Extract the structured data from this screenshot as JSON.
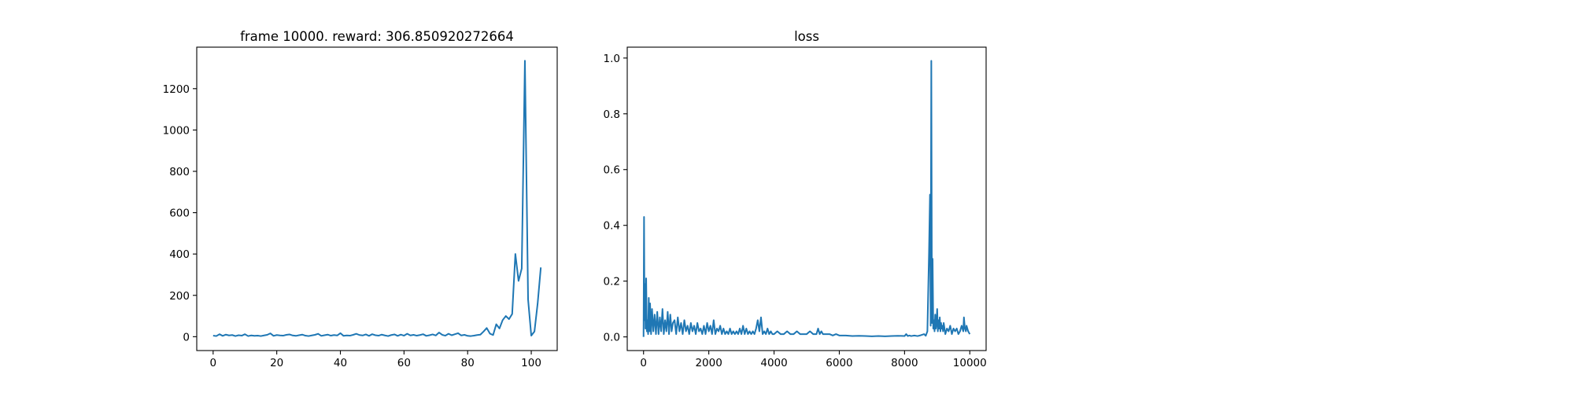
{
  "chart_data": [
    {
      "type": "line",
      "title": "frame 10000. reward: 306.850920272664",
      "xlabel": "",
      "ylabel": "",
      "xlim": [
        -5.15,
        108.15
      ],
      "ylim": [
        -67.1,
        1400.8
      ],
      "xticks": [
        0,
        20,
        40,
        60,
        80,
        100
      ],
      "yticks": [
        0,
        200,
        400,
        600,
        800,
        1000,
        1200
      ],
      "grid": false,
      "color": "#1f77b4",
      "series": [
        {
          "x": [
            0,
            1,
            2,
            3,
            4,
            5,
            6,
            7,
            8,
            9,
            10,
            11,
            12,
            13,
            14,
            15,
            16,
            17,
            18,
            19,
            20,
            21,
            22,
            23,
            24,
            25,
            26,
            27,
            28,
            29,
            30,
            31,
            32,
            33,
            34,
            35,
            36,
            37,
            38,
            39,
            40,
            41,
            42,
            43,
            44,
            45,
            46,
            47,
            48,
            49,
            50,
            51,
            52,
            53,
            54,
            55,
            56,
            57,
            58,
            59,
            60,
            61,
            62,
            63,
            64,
            65,
            66,
            67,
            68,
            69,
            70,
            71,
            72,
            73,
            74,
            75,
            76,
            77,
            78,
            79,
            80,
            81,
            82,
            83,
            84,
            85,
            86,
            87,
            88,
            89,
            90,
            91,
            92,
            93,
            94,
            95,
            96,
            97,
            98,
            99,
            100,
            101,
            102,
            103
          ],
          "y": [
            5,
            3,
            12,
            4,
            10,
            6,
            8,
            3,
            7,
            5,
            12,
            3,
            6,
            4,
            5,
            3,
            6,
            9,
            16,
            4,
            8,
            6,
            5,
            9,
            11,
            6,
            4,
            7,
            10,
            5,
            3,
            6,
            9,
            14,
            4,
            7,
            10,
            5,
            8,
            6,
            17,
            4,
            6,
            5,
            9,
            14,
            8,
            6,
            11,
            4,
            12,
            7,
            5,
            10,
            6,
            3,
            8,
            11,
            4,
            10,
            5,
            14,
            6,
            9,
            5,
            8,
            12,
            4,
            7,
            11,
            6,
            20,
            9,
            5,
            14,
            7,
            12,
            17,
            6,
            9,
            4,
            3,
            5,
            8,
            10,
            25,
            42,
            15,
            8,
            60,
            40,
            80,
            100,
            85,
            110,
            400,
            270,
            330,
            1335,
            180,
            5,
            25,
            160,
            335
          ]
        }
      ]
    },
    {
      "type": "line",
      "title": "loss",
      "xlabel": "",
      "ylabel": "",
      "xlim": [
        -500,
        10500
      ],
      "ylim": [
        -0.049,
        1.039
      ],
      "xticks": [
        0,
        2000,
        4000,
        6000,
        8000,
        10000
      ],
      "yticks": [
        0.0,
        0.2,
        0.4,
        0.6,
        0.8,
        1.0
      ],
      "grid": false,
      "color": "#1f77b4",
      "series": [
        {
          "x": [
            0,
            15,
            30,
            45,
            60,
            80,
            100,
            120,
            140,
            160,
            180,
            200,
            230,
            260,
            300,
            340,
            380,
            420,
            460,
            500,
            540,
            580,
            620,
            660,
            700,
            740,
            780,
            820,
            860,
            900,
            950,
            1000,
            1050,
            1100,
            1150,
            1200,
            1250,
            1300,
            1350,
            1400,
            1450,
            1500,
            1550,
            1600,
            1650,
            1700,
            1750,
            1800,
            1850,
            1900,
            1950,
            2000,
            2050,
            2100,
            2150,
            2200,
            2250,
            2300,
            2350,
            2400,
            2450,
            2500,
            2550,
            2600,
            2650,
            2700,
            2750,
            2800,
            2850,
            2900,
            2950,
            3000,
            3050,
            3100,
            3150,
            3200,
            3250,
            3300,
            3350,
            3400,
            3450,
            3500,
            3550,
            3600,
            3650,
            3700,
            3750,
            3800,
            3850,
            3900,
            3950,
            4000,
            4100,
            4200,
            4300,
            4400,
            4500,
            4600,
            4700,
            4800,
            4900,
            5000,
            5100,
            5200,
            5300,
            5350,
            5400,
            5450,
            5500,
            5600,
            5700,
            5800,
            5900,
            6000,
            6200,
            6400,
            6600,
            6800,
            7000,
            7200,
            7400,
            7600,
            7800,
            8000,
            8050,
            8100,
            8150,
            8200,
            8300,
            8400,
            8500,
            8600,
            8650,
            8700,
            8750,
            8780,
            8800,
            8820,
            8840,
            8860,
            8880,
            8900,
            8920,
            8940,
            8960,
            8980,
            9000,
            9020,
            9040,
            9060,
            9080,
            9100,
            9120,
            9140,
            9160,
            9180,
            9200,
            9250,
            9300,
            9350,
            9400,
            9450,
            9500,
            9550,
            9600,
            9650,
            9700,
            9750,
            9800,
            9820,
            9850,
            9880,
            9900,
            9950,
            10000
          ],
          "y": [
            0.0,
            0.43,
            0.06,
            0.19,
            0.03,
            0.21,
            0.02,
            0.06,
            0.01,
            0.14,
            0.02,
            0.12,
            0.01,
            0.1,
            0.02,
            0.08,
            0.01,
            0.09,
            0.01,
            0.07,
            0.02,
            0.1,
            0.01,
            0.06,
            0.02,
            0.09,
            0.01,
            0.08,
            0.02,
            0.05,
            0.06,
            0.01,
            0.07,
            0.02,
            0.05,
            0.01,
            0.06,
            0.02,
            0.04,
            0.01,
            0.05,
            0.02,
            0.04,
            0.01,
            0.05,
            0.02,
            0.03,
            0.01,
            0.04,
            0.01,
            0.05,
            0.02,
            0.04,
            0.01,
            0.06,
            0.01,
            0.03,
            0.02,
            0.04,
            0.01,
            0.03,
            0.01,
            0.02,
            0.01,
            0.03,
            0.01,
            0.02,
            0.01,
            0.02,
            0.01,
            0.03,
            0.01,
            0.04,
            0.01,
            0.03,
            0.01,
            0.02,
            0.01,
            0.02,
            0.01,
            0.03,
            0.06,
            0.02,
            0.07,
            0.01,
            0.02,
            0.01,
            0.03,
            0.01,
            0.02,
            0.01,
            0.01,
            0.02,
            0.01,
            0.01,
            0.02,
            0.01,
            0.01,
            0.02,
            0.01,
            0.01,
            0.01,
            0.02,
            0.01,
            0.01,
            0.03,
            0.01,
            0.02,
            0.01,
            0.01,
            0.01,
            0.005,
            0.01,
            0.005,
            0.005,
            0.003,
            0.004,
            0.003,
            0.002,
            0.003,
            0.002,
            0.003,
            0.004,
            0.003,
            0.01,
            0.003,
            0.005,
            0.003,
            0.005,
            0.003,
            0.006,
            0.01,
            0.004,
            0.02,
            0.3,
            0.51,
            0.04,
            0.99,
            0.05,
            0.28,
            0.03,
            0.06,
            0.02,
            0.08,
            0.03,
            0.05,
            0.1,
            0.02,
            0.06,
            0.03,
            0.07,
            0.02,
            0.05,
            0.03,
            0.04,
            0.02,
            0.05,
            0.01,
            0.03,
            0.02,
            0.04,
            0.01,
            0.03,
            0.02,
            0.03,
            0.01,
            0.02,
            0.04,
            0.02,
            0.07,
            0.03,
            0.02,
            0.04,
            0.02,
            0.01
          ]
        }
      ]
    }
  ]
}
